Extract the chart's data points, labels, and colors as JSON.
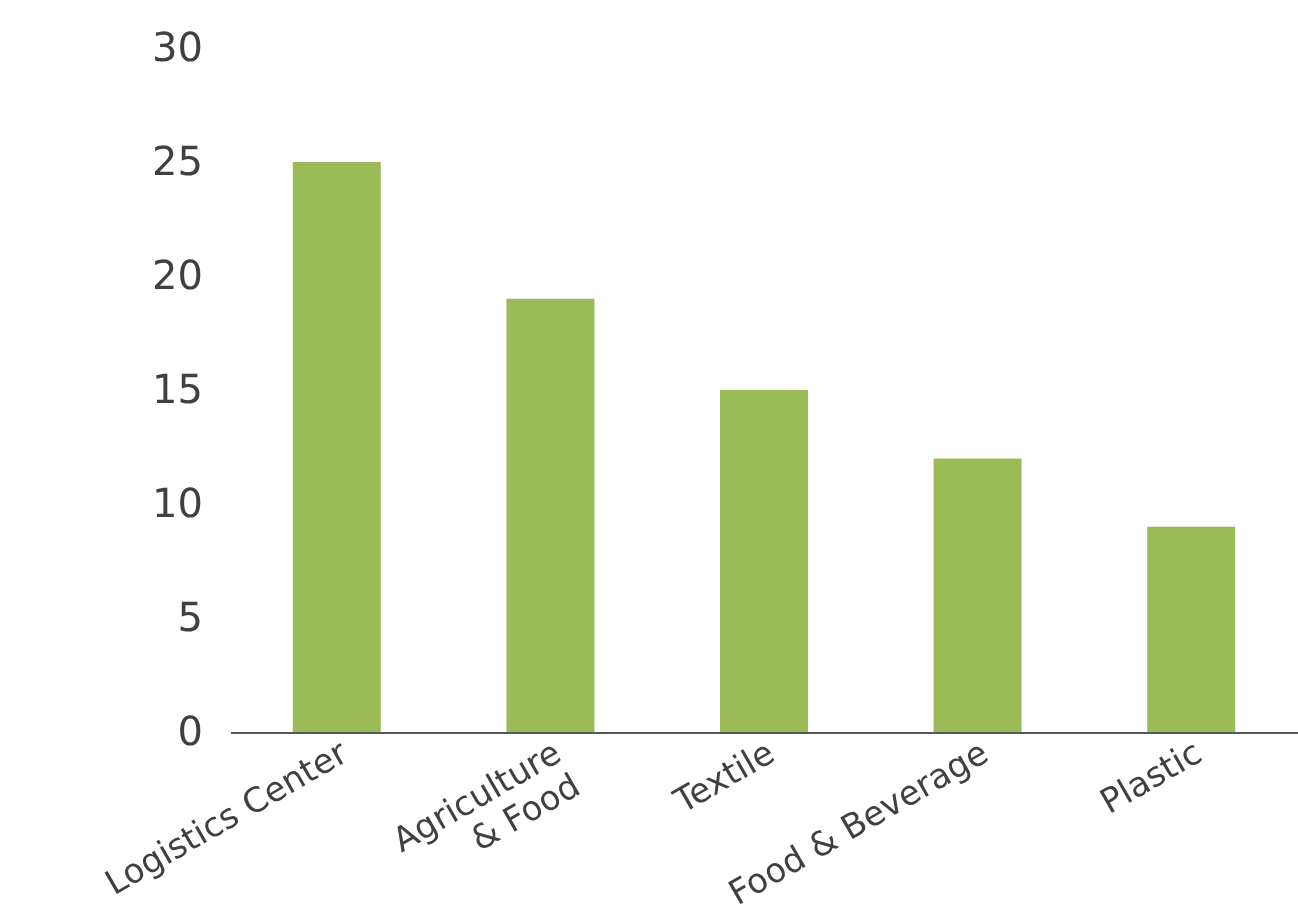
{
  "chart_data": {
    "type": "bar",
    "categories": [
      "Logistics Center",
      "Agriculture\n& Food",
      "Textile",
      "Food & Beverage",
      "Plastic"
    ],
    "values": [
      25,
      19,
      15,
      12,
      9
    ],
    "color": "#9bbb59",
    "ylim": [
      0,
      30
    ],
    "yticks": [
      0,
      5,
      10,
      15,
      20,
      25,
      30
    ],
    "grid": false
  }
}
